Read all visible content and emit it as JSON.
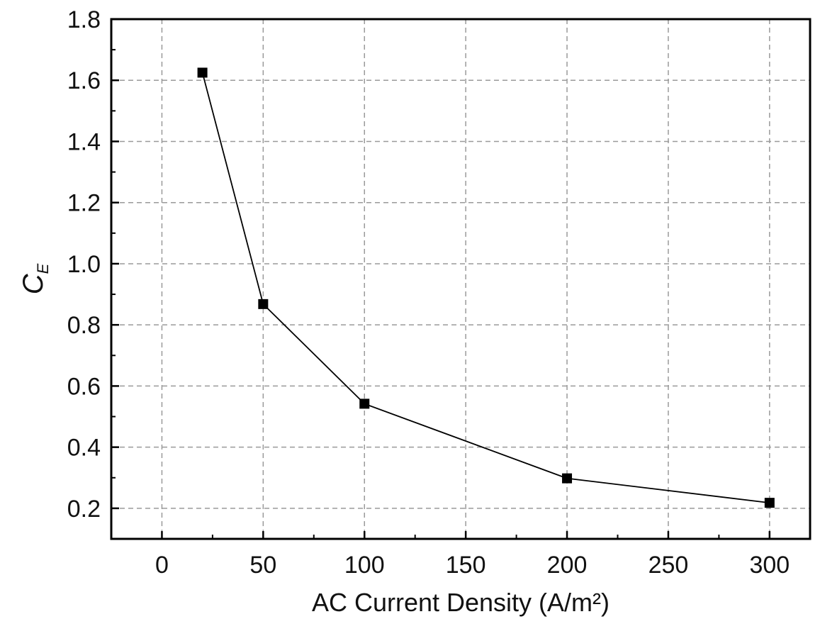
{
  "chart_data": {
    "type": "line",
    "title": "",
    "xlabel": "AC Current Density (A/m²)",
    "ylabel": {
      "main": "C",
      "subscript": "E"
    },
    "x_ticks": [
      0,
      50,
      100,
      150,
      200,
      250,
      300
    ],
    "x_tick_labels": [
      "0",
      "50",
      "100",
      "150",
      "200",
      "250",
      "300"
    ],
    "y_ticks": [
      0.2,
      0.4,
      0.6,
      0.8,
      1.0,
      1.2,
      1.4,
      1.6,
      1.8
    ],
    "y_tick_labels": [
      "0.2",
      "0.4",
      "0.6",
      "0.8",
      "1.0",
      "1.2",
      "1.4",
      "1.6",
      "1.8"
    ],
    "xlim": [
      -25,
      320
    ],
    "ylim": [
      0.1,
      1.8
    ],
    "grid": true,
    "legend": "none",
    "series": [
      {
        "marker": "square",
        "color": "#000000",
        "x": [
          20,
          50,
          100,
          200,
          300
        ],
        "y": [
          1.625,
          0.868,
          0.542,
          0.298,
          0.218
        ]
      }
    ]
  }
}
